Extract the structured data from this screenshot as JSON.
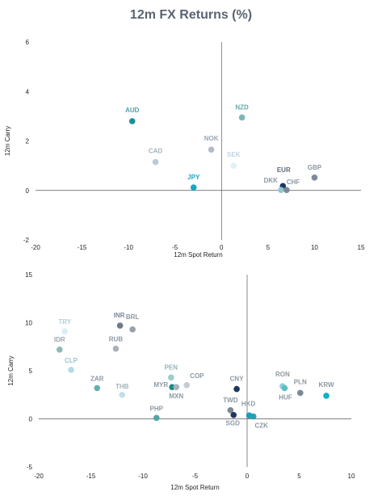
{
  "title": "12m FX Returns (%)",
  "chart_data": [
    {
      "type": "scatter",
      "xlabel": "12m Spot Return",
      "ylabel": "12m Carry",
      "xlim": [
        -20,
        15
      ],
      "ylim": [
        -2,
        6
      ],
      "xticks": [
        -20,
        -15,
        -10,
        -5,
        0,
        5,
        10,
        15
      ],
      "yticks": [
        -2,
        0,
        2,
        4,
        6
      ],
      "grid": false,
      "points": [
        {
          "label": "AUD",
          "x": -9.6,
          "y": 2.8,
          "color": "#1a8f98",
          "labelColor": "#4aa3a8"
        },
        {
          "label": "NZD",
          "x": 2.2,
          "y": 2.95,
          "color": "#79b8b6",
          "labelColor": "#6aa9a8"
        },
        {
          "label": "NOK",
          "x": -1.1,
          "y": 1.65,
          "color": "#b0bcc8",
          "labelColor": "#9aa6b2"
        },
        {
          "label": "CAD",
          "x": -7.1,
          "y": 1.15,
          "color": "#b8ccd6",
          "labelColor": "#a3b3bd"
        },
        {
          "label": "SEK",
          "x": 1.3,
          "y": 1.0,
          "color": "#dff0f8",
          "labelColor": "#bfd5df"
        },
        {
          "label": "JPY",
          "x": -3.0,
          "y": 0.12,
          "color": "#14a8c8",
          "labelColor": "#14a8c8"
        },
        {
          "label": "EUR",
          "x": 6.6,
          "y": 0.18,
          "color": "#1c3760",
          "labelColor": "#5d6b7a"
        },
        {
          "label": "DKK",
          "x": 6.4,
          "y": 0.02,
          "color": "#8fc8cf",
          "labelColor": "#8d98a3"
        },
        {
          "label": "CHF",
          "x": 7.0,
          "y": 0.02,
          "color": "#7b8896",
          "labelColor": "#8d98a3"
        },
        {
          "label": "GBP",
          "x": 10.0,
          "y": 0.52,
          "color": "#7d8a99",
          "labelColor": "#8d98a3"
        }
      ]
    },
    {
      "type": "scatter",
      "xlabel": "12m Spot Return",
      "ylabel": "12m Carry",
      "xlim": [
        -20,
        10
      ],
      "ylim": [
        -5,
        15
      ],
      "xticks": [
        -20,
        -15,
        -10,
        -5,
        0,
        5,
        10
      ],
      "yticks": [
        -5,
        0,
        5,
        10,
        15
      ],
      "grid": false,
      "points": [
        {
          "label": "TRY",
          "x": -17.5,
          "y": 9.1,
          "color": "#d8eef6",
          "labelColor": "#b8ccd8"
        },
        {
          "label": "INR",
          "x": -12.2,
          "y": 9.7,
          "color": "#6c7b8c",
          "labelColor": "#7a8795"
        },
        {
          "label": "BRL",
          "x": -11.0,
          "y": 9.3,
          "color": "#97a2af",
          "labelColor": "#8d98a3"
        },
        {
          "label": "IDR",
          "x": -18.0,
          "y": 7.2,
          "color": "#8cbcb8",
          "labelColor": "#9aa6b2"
        },
        {
          "label": "RUB",
          "x": -12.6,
          "y": 7.3,
          "color": "#a6b1bd",
          "labelColor": "#8d98a3"
        },
        {
          "label": "CLP",
          "x": -16.9,
          "y": 5.1,
          "color": "#b5dbe8",
          "labelColor": "#9dc3d3"
        },
        {
          "label": "ZAR",
          "x": -14.4,
          "y": 3.2,
          "color": "#66afb0",
          "labelColor": "#8d98a3"
        },
        {
          "label": "THB",
          "x": -12.0,
          "y": 2.5,
          "color": "#bfe0ea",
          "labelColor": "#a3b3bd"
        },
        {
          "label": "PEN",
          "x": -7.3,
          "y": 4.3,
          "color": "#99cfcb",
          "labelColor": "#8fb4b6"
        },
        {
          "label": "MYR",
          "x": -7.2,
          "y": 3.3,
          "color": "#1b8a82",
          "labelColor": "#8d98a3"
        },
        {
          "label": "COP",
          "x": -5.8,
          "y": 3.5,
          "color": "#c4ccd4",
          "labelColor": "#8d98a3"
        },
        {
          "label": "MXN",
          "x": -6.8,
          "y": 3.3,
          "color": "#a9b3bd",
          "labelColor": "#8d98a3"
        },
        {
          "label": "CNY",
          "x": -1.0,
          "y": 3.1,
          "color": "#1c3760",
          "labelColor": "#8d98a3"
        },
        {
          "label": "PHP",
          "x": -8.7,
          "y": 0.1,
          "color": "#52a5a2",
          "labelColor": "#8d98a3"
        },
        {
          "label": "TWD",
          "x": -1.6,
          "y": 0.9,
          "color": "#7b8896",
          "labelColor": "#8d98a3"
        },
        {
          "label": "SGD",
          "x": -1.3,
          "y": 0.4,
          "color": "#1c3760",
          "labelColor": "#8d98a3"
        },
        {
          "label": "HKD",
          "x": 0.2,
          "y": 0.35,
          "color": "#14a0b8",
          "labelColor": "#8d98a3"
        },
        {
          "label": "CZK",
          "x": 0.6,
          "y": 0.25,
          "color": "#2a9fae",
          "labelColor": "#8d98a3"
        },
        {
          "label": "RON",
          "x": 3.4,
          "y": 3.4,
          "color": "#8fd0dc",
          "labelColor": "#8d98a3"
        },
        {
          "label": "HUF",
          "x": 3.6,
          "y": 3.2,
          "color": "#5fbfc0",
          "labelColor": "#8d98a3"
        },
        {
          "label": "PLN",
          "x": 5.1,
          "y": 2.7,
          "color": "#7b8896",
          "labelColor": "#8d98a3"
        },
        {
          "label": "KRW",
          "x": 7.6,
          "y": 2.4,
          "color": "#14b0c8",
          "labelColor": "#8d98a3"
        }
      ]
    }
  ]
}
